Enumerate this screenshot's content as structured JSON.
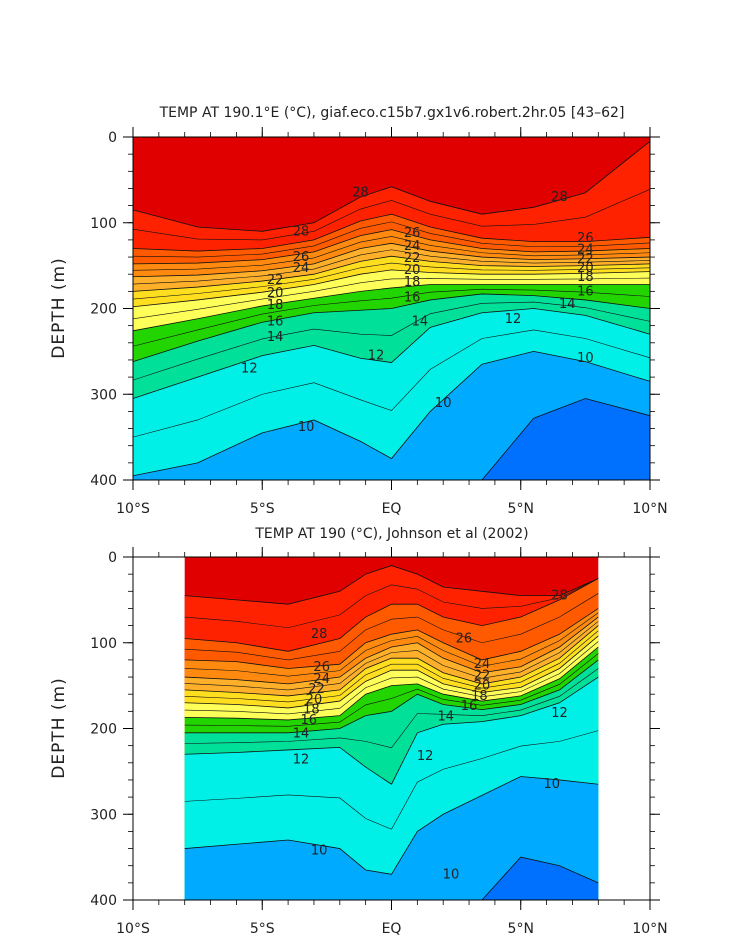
{
  "chart_data": [
    {
      "type": "heatmap",
      "title": "TEMP AT 190.1°E (°C), giaf.eco.c15b7.gx1v6.robert.2hr.05 [43–62]",
      "ylabel": "DEPTH (m)",
      "xlabel": "",
      "xlim": [
        -10,
        10
      ],
      "ylim": [
        0,
        400
      ],
      "data_xlim": [
        -10,
        10
      ],
      "x_ticks": [
        {
          "value": -10,
          "label": "10°S"
        },
        {
          "value": -5,
          "label": "5°S"
        },
        {
          "value": 0,
          "label": "EQ"
        },
        {
          "value": 5,
          "label": "5°N"
        },
        {
          "value": 10,
          "label": "10°N"
        }
      ],
      "y_ticks": [
        {
          "value": 0,
          "label": "0"
        },
        {
          "value": 100,
          "label": "100"
        },
        {
          "value": 200,
          "label": "200"
        },
        {
          "value": 300,
          "label": "300"
        },
        {
          "value": 400,
          "label": "400"
        }
      ],
      "x_profile": [
        -10,
        -7.5,
        -5,
        -3,
        -1.2,
        0,
        1.5,
        3.5,
        5.5,
        7.5,
        10
      ],
      "isotherms": [
        {
          "temp": 28,
          "depths": [
            85,
            105,
            110,
            100,
            70,
            58,
            75,
            90,
            82,
            65,
            5
          ]
        },
        {
          "temp": 26,
          "depths": [
            130,
            133,
            130,
            120,
            98,
            90,
            105,
            118,
            122,
            122,
            117
          ]
        },
        {
          "temp": 24,
          "depths": [
            148,
            147,
            143,
            134,
            115,
            108,
            120,
            130,
            134,
            133,
            130
          ]
        },
        {
          "temp": 22,
          "depths": [
            163,
            161,
            156,
            148,
            130,
            124,
            133,
            140,
            143,
            142,
            140
          ]
        },
        {
          "temp": 20,
          "depths": [
            180,
            175,
            168,
            160,
            145,
            139,
            145,
            150,
            151,
            150,
            148
          ]
        },
        {
          "temp": 18,
          "depths": [
            198,
            190,
            181,
            172,
            160,
            155,
            158,
            160,
            160,
            159,
            157
          ]
        },
        {
          "temp": 16,
          "depths": [
            226,
            212,
            197,
            188,
            180,
            176,
            172,
            172,
            172,
            172,
            172
          ]
        },
        {
          "temp": 14,
          "depths": [
            262,
            238,
            216,
            205,
            202,
            200,
            190,
            183,
            185,
            190,
            200
          ]
        },
        {
          "temp": 12,
          "depths": [
            305,
            280,
            255,
            243,
            258,
            263,
            222,
            205,
            200,
            208,
            230
          ]
        },
        {
          "temp": 10,
          "depths": [
            395,
            380,
            345,
            330,
            355,
            375,
            320,
            265,
            250,
            262,
            285
          ]
        },
        {
          "temp": 9,
          "depths": [
            400,
            400,
            400,
            400,
            400,
            400,
            400,
            400,
            328,
            305,
            325
          ]
        }
      ],
      "contour_labels": [
        {
          "text": "28",
          "x": -1.2,
          "depth": 65
        },
        {
          "text": "28",
          "x": 6.5,
          "depth": 70
        },
        {
          "text": "28",
          "x": -3.5,
          "depth": 110
        },
        {
          "text": "26",
          "x": 0.8,
          "depth": 112
        },
        {
          "text": "26",
          "x": 7.5,
          "depth": 118
        },
        {
          "text": "26",
          "x": -3.5,
          "depth": 140
        },
        {
          "text": "24",
          "x": 0.8,
          "depth": 127
        },
        {
          "text": "24",
          "x": 7.5,
          "depth": 131
        },
        {
          "text": "24",
          "x": -3.5,
          "depth": 153
        },
        {
          "text": "22",
          "x": 0.8,
          "depth": 141
        },
        {
          "text": "22",
          "x": 7.5,
          "depth": 142
        },
        {
          "text": "22",
          "x": -4.5,
          "depth": 167
        },
        {
          "text": "20",
          "x": 0.8,
          "depth": 155
        },
        {
          "text": "20",
          "x": 7.5,
          "depth": 153
        },
        {
          "text": "20",
          "x": -4.5,
          "depth": 182
        },
        {
          "text": "18",
          "x": 0.8,
          "depth": 169
        },
        {
          "text": "18",
          "x": 7.5,
          "depth": 163
        },
        {
          "text": "18",
          "x": -4.5,
          "depth": 196
        },
        {
          "text": "16",
          "x": 0.8,
          "depth": 187
        },
        {
          "text": "16",
          "x": 7.5,
          "depth": 180
        },
        {
          "text": "16",
          "x": -4.5,
          "depth": 215
        },
        {
          "text": "14",
          "x": -4.5,
          "depth": 233
        },
        {
          "text": "14",
          "x": 1.1,
          "depth": 215
        },
        {
          "text": "14",
          "x": 6.8,
          "depth": 195
        },
        {
          "text": "12",
          "x": -5.5,
          "depth": 270
        },
        {
          "text": "12",
          "x": -0.6,
          "depth": 255
        },
        {
          "text": "12",
          "x": 4.7,
          "depth": 212
        },
        {
          "text": "10",
          "x": -3.3,
          "depth": 338
        },
        {
          "text": "10",
          "x": 2.0,
          "depth": 310
        },
        {
          "text": "10",
          "x": 7.5,
          "depth": 258
        }
      ],
      "fill_colors": {
        "gt28": "#e00000",
        "26_28": "#ff2200",
        "24_26": "#ff5a00",
        "22_24": "#ff8a0f",
        "20_22": "#ffb02a",
        "18_20": "#ffde20",
        "16_18": "#ffff5a",
        "14_16": "#22d400",
        "12_14": "#00e099",
        "10_12": "#00f0e8",
        "9_10": "#00aaff",
        "8_9": "#0070ff",
        "lt8": "#0020ff"
      }
    },
    {
      "type": "heatmap",
      "title": "TEMP AT 190 (°C), Johnson et al (2002)",
      "ylabel": "DEPTH (m)",
      "xlabel": "",
      "xlim": [
        -10,
        10
      ],
      "ylim": [
        0,
        400
      ],
      "data_xlim": [
        -8,
        8
      ],
      "x_ticks": [
        {
          "value": -10,
          "label": "10°S"
        },
        {
          "value": -5,
          "label": "5°S"
        },
        {
          "value": 0,
          "label": "EQ"
        },
        {
          "value": 5,
          "label": "5°N"
        },
        {
          "value": 10,
          "label": "10°N"
        }
      ],
      "y_ticks": [
        {
          "value": 0,
          "label": "0"
        },
        {
          "value": 100,
          "label": "100"
        },
        {
          "value": 200,
          "label": "200"
        },
        {
          "value": 300,
          "label": "300"
        },
        {
          "value": 400,
          "label": "400"
        }
      ],
      "x_profile": [
        -8,
        -6,
        -4,
        -2,
        -1,
        0,
        1,
        2,
        3.5,
        5,
        6.5,
        8
      ],
      "isotherms": [
        {
          "temp": 28,
          "depths": [
            45,
            50,
            55,
            40,
            20,
            10,
            20,
            35,
            40,
            45,
            45,
            25
          ]
        },
        {
          "temp": 26,
          "depths": [
            95,
            100,
            110,
            95,
            70,
            55,
            55,
            70,
            80,
            70,
            50,
            25
          ]
        },
        {
          "temp": 24,
          "depths": [
            120,
            122,
            130,
            125,
            100,
            90,
            85,
            100,
            120,
            110,
            90,
            60
          ]
        },
        {
          "temp": 22,
          "depths": [
            140,
            143,
            148,
            140,
            118,
            105,
            100,
            118,
            135,
            128,
            105,
            70
          ]
        },
        {
          "temp": 20,
          "depths": [
            155,
            158,
            162,
            155,
            130,
            118,
            118,
            135,
            148,
            140,
            118,
            80
          ]
        },
        {
          "temp": 18,
          "depths": [
            170,
            172,
            176,
            168,
            145,
            132,
            132,
            148,
            158,
            152,
            130,
            92
          ]
        },
        {
          "temp": 16,
          "depths": [
            187,
            188,
            190,
            185,
            160,
            150,
            148,
            160,
            168,
            162,
            142,
            105
          ]
        },
        {
          "temp": 14,
          "depths": [
            205,
            205,
            205,
            200,
            185,
            180,
            160,
            172,
            178,
            172,
            155,
            120
          ]
        },
        {
          "temp": 12,
          "depths": [
            230,
            228,
            225,
            222,
            245,
            265,
            205,
            195,
            192,
            185,
            170,
            140
          ]
        },
        {
          "temp": 10,
          "depths": [
            340,
            335,
            330,
            340,
            365,
            370,
            320,
            300,
            278,
            256,
            260,
            265
          ]
        },
        {
          "temp": 9,
          "depths": [
            400,
            400,
            400,
            400,
            400,
            400,
            400,
            400,
            400,
            350,
            360,
            380
          ]
        }
      ],
      "contour_labels": [
        {
          "text": "28",
          "x": -2.8,
          "depth": 90
        },
        {
          "text": "28",
          "x": 6.5,
          "depth": 45
        },
        {
          "text": "26",
          "x": 2.8,
          "depth": 95
        },
        {
          "text": "26",
          "x": -2.7,
          "depth": 128
        },
        {
          "text": "24",
          "x": 3.5,
          "depth": 125
        },
        {
          "text": "24",
          "x": -2.7,
          "depth": 142
        },
        {
          "text": "22",
          "x": 3.5,
          "depth": 138
        },
        {
          "text": "22",
          "x": -2.9,
          "depth": 154
        },
        {
          "text": "20",
          "x": 3.5,
          "depth": 150
        },
        {
          "text": "20",
          "x": -3.0,
          "depth": 166
        },
        {
          "text": "18",
          "x": 3.4,
          "depth": 162
        },
        {
          "text": "18",
          "x": -3.1,
          "depth": 178
        },
        {
          "text": "16",
          "x": 3.0,
          "depth": 174
        },
        {
          "text": "16",
          "x": -3.2,
          "depth": 190
        },
        {
          "text": "14",
          "x": 2.1,
          "depth": 186
        },
        {
          "text": "14",
          "x": -3.5,
          "depth": 206
        },
        {
          "text": "12",
          "x": -3.5,
          "depth": 236
        },
        {
          "text": "12",
          "x": 1.3,
          "depth": 232
        },
        {
          "text": "12",
          "x": 6.5,
          "depth": 182
        },
        {
          "text": "10",
          "x": 6.2,
          "depth": 265
        },
        {
          "text": "10",
          "x": -2.8,
          "depth": 342
        },
        {
          "text": "10",
          "x": 2.3,
          "depth": 370
        }
      ],
      "fill_colors": {
        "gt28": "#e00000",
        "26_28": "#ff2200",
        "24_26": "#ff5a00",
        "22_24": "#ff8a0f",
        "20_22": "#ffb02a",
        "18_20": "#ffde20",
        "16_18": "#ffff5a",
        "14_16": "#22d400",
        "12_14": "#00e099",
        "10_12": "#00f0e8",
        "9_10": "#00aaff",
        "8_9": "#0070ff",
        "lt8": "#0020ff"
      }
    }
  ]
}
